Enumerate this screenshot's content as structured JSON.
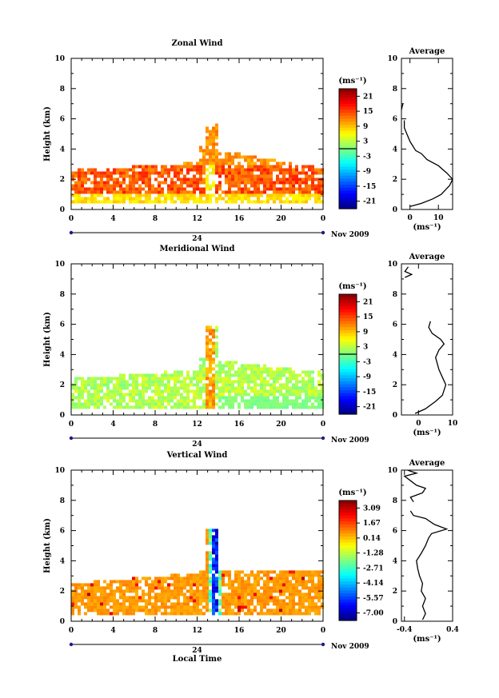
{
  "chart_data": [
    {
      "type": "heatmap",
      "title": "Zonal Wind",
      "ylabel": "Height (km)",
      "ylim": [
        0,
        10
      ],
      "x_ticks": [
        "0",
        "4",
        "8",
        "12",
        "16",
        "20",
        "0"
      ],
      "date_day": "24",
      "date_month": "Nov 2009",
      "colorbar": {
        "unit": "(ms⁻¹)",
        "range": [
          -24,
          24
        ],
        "ticks": [
          "21",
          "15",
          "9",
          "3",
          "-3",
          "-9",
          "-15",
          "-21"
        ]
      },
      "average": {
        "title": "Average",
        "xlabel": "(ms⁻¹)",
        "xlim": [
          -3,
          15
        ],
        "x_ticks": [
          "0",
          "10"
        ],
        "x_tick_values": [
          0,
          10
        ],
        "profile": [
          [
            0,
            0.2
          ],
          [
            4,
            0.4
          ],
          [
            8,
            0.7
          ],
          [
            11,
            1.0
          ],
          [
            14,
            1.6
          ],
          [
            15,
            2.0
          ],
          [
            13,
            2.4
          ],
          [
            10,
            2.9
          ],
          [
            6,
            3.3
          ],
          [
            4,
            3.7
          ],
          [
            2,
            3.9
          ],
          [
            0,
            4.5
          ],
          [
            -2,
            5.4
          ],
          [
            -2,
            5.9
          ]
        ],
        "profile_upper": [
          [
            -3,
            6.6
          ],
          [
            -2.5,
            7.0
          ]
        ]
      }
    },
    {
      "type": "heatmap",
      "title": "Meridional Wind",
      "ylabel": "Height (km)",
      "ylim": [
        0,
        10
      ],
      "x_ticks": [
        "0",
        "4",
        "8",
        "12",
        "16",
        "20",
        "0"
      ],
      "date_day": "24",
      "date_month": "Nov 2009",
      "colorbar": {
        "unit": "(ms⁻¹)",
        "range": [
          -24,
          24
        ],
        "ticks": [
          "21",
          "15",
          "9",
          "3",
          "-3",
          "-9",
          "-15",
          "-21"
        ]
      },
      "average": {
        "title": "Average",
        "xlabel": "(ms⁻¹)",
        "xlim": [
          -5,
          10
        ],
        "x_ticks": [
          "0",
          "10"
        ],
        "x_tick_values": [
          0,
          10
        ],
        "profile": [
          [
            -1,
            0.1
          ],
          [
            2,
            0.4
          ],
          [
            5,
            0.9
          ],
          [
            7,
            1.3
          ],
          [
            8,
            2.0
          ],
          [
            7,
            2.5
          ],
          [
            6,
            3.0
          ],
          [
            5.5,
            3.4
          ],
          [
            5,
            3.8
          ],
          [
            6,
            4.3
          ],
          [
            7.5,
            4.7
          ],
          [
            6.5,
            5.0
          ],
          [
            4,
            5.4
          ],
          [
            3,
            5.8
          ],
          [
            3.5,
            6.2
          ]
        ],
        "profile_upper": [
          [
            -4,
            9.1
          ],
          [
            -2,
            9.3
          ],
          [
            -4,
            9.5
          ],
          [
            -3,
            9.8
          ]
        ]
      }
    },
    {
      "type": "heatmap",
      "title": "Vertical Wind",
      "xlabel": "Local Time",
      "ylabel": "Height (km)",
      "ylim": [
        0,
        10
      ],
      "x_ticks": [
        "0",
        "4",
        "8",
        "12",
        "16",
        "20",
        "0"
      ],
      "date_day": "24",
      "date_month": "Nov 2009",
      "colorbar": {
        "unit": "(ms⁻¹)",
        "range": [
          -7.8,
          3.8
        ],
        "ticks": [
          "3.09",
          "1.67",
          "0.14",
          "-1.28",
          "-2.71",
          "-4.14",
          "-5.57",
          "-7.00"
        ]
      },
      "average": {
        "title": "Average",
        "xlabel": "(ms⁻¹)",
        "xlim": [
          -0.45,
          0.4
        ],
        "x_ticks": [
          "-0.4",
          "0.4"
        ],
        "x_tick_values": [
          -0.4,
          0.4
        ],
        "profile": [
          [
            -0.1,
            0.1
          ],
          [
            -0.05,
            0.5
          ],
          [
            -0.1,
            1.0
          ],
          [
            -0.05,
            1.5
          ],
          [
            -0.12,
            2.0
          ],
          [
            -0.1,
            2.5
          ],
          [
            -0.15,
            3.0
          ],
          [
            -0.18,
            3.5
          ],
          [
            -0.2,
            4.0
          ],
          [
            -0.12,
            4.5
          ],
          [
            -0.05,
            5.0
          ],
          [
            0.0,
            5.5
          ],
          [
            0.05,
            5.8
          ],
          [
            0.3,
            6.1
          ],
          [
            0.1,
            6.4
          ],
          [
            -0.05,
            6.8
          ],
          [
            -0.25,
            7.0
          ],
          [
            -0.3,
            7.3
          ]
        ],
        "profile_upper": [
          [
            -0.25,
            7.9
          ],
          [
            -0.3,
            8.2
          ],
          [
            -0.1,
            8.5
          ],
          [
            -0.05,
            8.8
          ],
          [
            -0.2,
            9.0
          ],
          [
            -0.3,
            9.3
          ],
          [
            -0.4,
            9.6
          ],
          [
            -0.2,
            9.8
          ],
          [
            -0.35,
            10.0
          ]
        ]
      }
    }
  ]
}
